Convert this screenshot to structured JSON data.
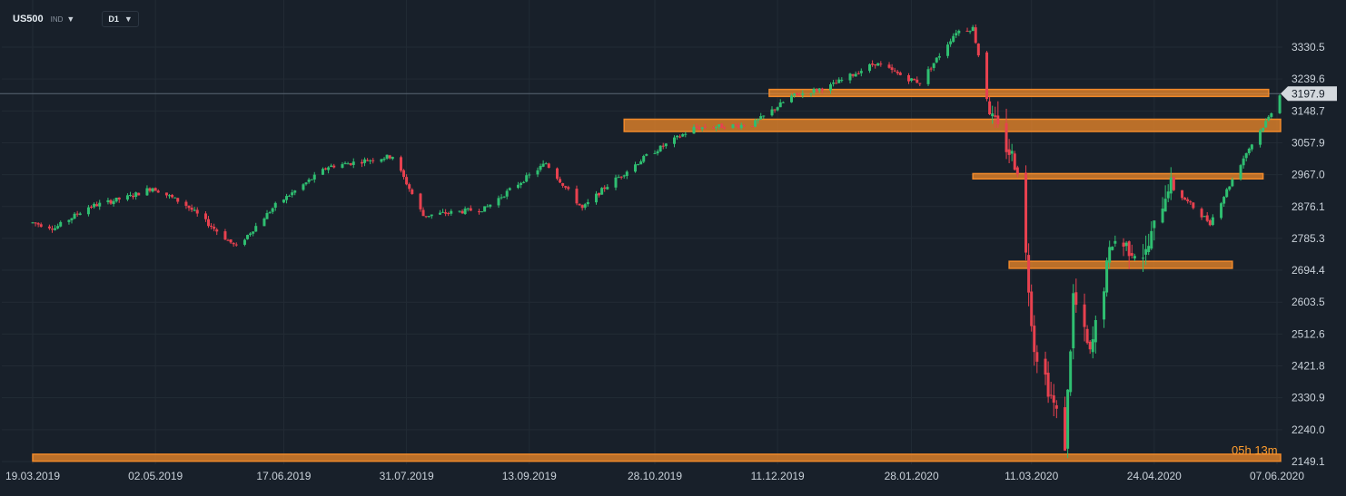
{
  "toolbar": {
    "symbol": "US500",
    "symbol_type": "IND",
    "timeframe": "D1"
  },
  "countdown": {
    "hours": "05",
    "hours_unit": "h",
    "minutes": "13",
    "minutes_unit": "m"
  },
  "colors": {
    "background": "#18202a",
    "grid": "#222b35",
    "up_candle": "#2fbf71",
    "down_candle": "#e8414f",
    "zone": "#f0892a",
    "price_line": "#5a6775",
    "axis_text": "#c9d1d9",
    "price_tag": "#d4d9de"
  },
  "chart_data": {
    "type": "candlestick",
    "instrument": "US500",
    "timeframe": "D1",
    "y_ticks": [
      2149.1,
      2240.0,
      2330.9,
      2421.8,
      2512.6,
      2603.5,
      2694.4,
      2785.3,
      2876.1,
      2967.0,
      3057.9,
      3148.7,
      3239.6,
      3330.5
    ],
    "x_ticks": [
      "19.03.2019",
      "02.05.2019",
      "17.06.2019",
      "31.07.2019",
      "13.09.2019",
      "28.10.2019",
      "11.12.2019",
      "28.01.2020",
      "11.03.2020",
      "24.04.2020",
      "07.06.2020"
    ],
    "current_price": 3197.9,
    "support_resistance_zones": [
      {
        "from": "08.12.2019",
        "to": "04.06.2020",
        "low": 3190,
        "high": 3210
      },
      {
        "from": "17.10.2019",
        "to": "15.06.2020",
        "low": 3090,
        "high": 3125
      },
      {
        "from": "19.02.2020",
        "to": "02.06.2020",
        "low": 2955,
        "high": 2970
      },
      {
        "from": "03.03.2020",
        "to": "22.05.2020",
        "low": 2700,
        "high": 2720
      },
      {
        "from": "19.03.2019",
        "to": "11.06.2020",
        "low": 2150,
        "high": 2170
      }
    ],
    "price_path": [
      [
        "19.03.2019",
        2830
      ],
      [
        "27.03.2019",
        2815
      ],
      [
        "08.04.2019",
        2875
      ],
      [
        "23.04.2019",
        2905
      ],
      [
        "01.05.2019",
        2930
      ],
      [
        "13.05.2019",
        2880
      ],
      [
        "31.05.2019",
        2760
      ],
      [
        "14.06.2019",
        2880
      ],
      [
        "03.07.2019",
        2990
      ],
      [
        "26.07.2019",
        3020
      ],
      [
        "06.08.2019",
        2850
      ],
      [
        "28.08.2019",
        2870
      ],
      [
        "19.09.2019",
        3000
      ],
      [
        "02.10.2019",
        2870
      ],
      [
        "10.10.2019",
        2930
      ],
      [
        "25.10.2019",
        3020
      ],
      [
        "11.11.2019",
        3100
      ],
      [
        "02.12.2019",
        3110
      ],
      [
        "16.12.2019",
        3190
      ],
      [
        "30.12.2019",
        3220
      ],
      [
        "15.01.2020",
        3285
      ],
      [
        "27.01.2020",
        3240
      ],
      [
        "31.01.2020",
        3230
      ],
      [
        "13.02.2020",
        3375
      ],
      [
        "19.02.2020",
        3385
      ],
      [
        "26.02.2020",
        3120
      ],
      [
        "06.03.2020",
        2990
      ],
      [
        "12.03.2020",
        2480
      ],
      [
        "16.03.2020",
        2390
      ],
      [
        "23.03.2020",
        2200
      ],
      [
        "26.03.2020",
        2620
      ],
      [
        "01.04.2020",
        2450
      ],
      [
        "09.04.2020",
        2780
      ],
      [
        "21.04.2020",
        2740
      ],
      [
        "29.04.2020",
        2940
      ],
      [
        "14.05.2020",
        2830
      ],
      [
        "27.05.2020",
        3030
      ],
      [
        "04.06.2020",
        3130
      ],
      [
        "08.06.2020",
        3198
      ]
    ]
  }
}
